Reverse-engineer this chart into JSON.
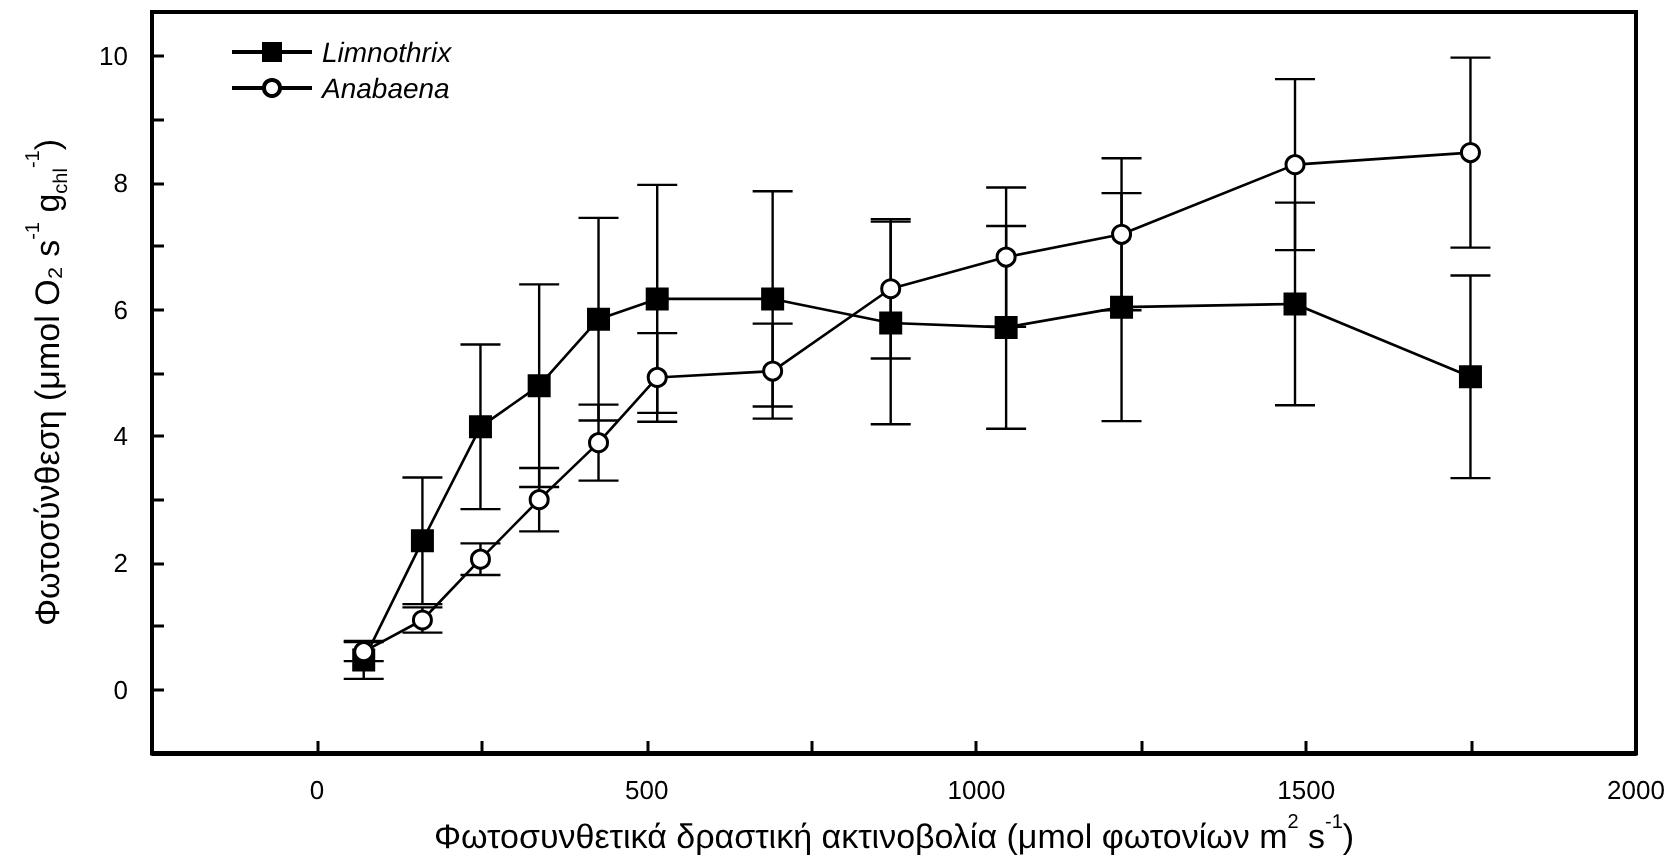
{
  "chart_data": {
    "type": "line",
    "xlabel": "Φωτοσυνθετικά δραστική ακτινοβολία (μmol φωτονίων m$^{2}$ s$^{-1}$)",
    "ylabel": "Φωτοσύνθεση (μmol O₂ s$^{-1}$ g$_{chl}$$^{-1}$)",
    "x": [
      71,
      160,
      248,
      337,
      427,
      516,
      691,
      870,
      1045,
      1220,
      1483,
      1749
    ],
    "series": [
      {
        "name": "Limnothrix",
        "color": "#000000",
        "marker": "square",
        "values": [
          0.47,
          2.35,
          4.15,
          4.8,
          5.85,
          6.17,
          6.17,
          5.79,
          5.72,
          6.04,
          6.09,
          4.94
        ],
        "errors": [
          0.3,
          1.0,
          1.3,
          1.6,
          1.6,
          1.8,
          1.7,
          1.6,
          1.6,
          1.8,
          1.6,
          1.6
        ]
      },
      {
        "name": "Anabaena",
        "color": "#000000",
        "marker": "circle",
        "values": [
          0.6,
          1.1,
          2.06,
          3.0,
          3.9,
          4.93,
          5.03,
          6.33,
          6.83,
          7.19,
          8.29,
          8.48
        ],
        "errors": [
          0.15,
          0.2,
          0.25,
          0.5,
          0.6,
          0.7,
          0.75,
          1.1,
          1.1,
          1.2,
          1.35,
          1.5
        ]
      }
    ],
    "xlim": [
      -250,
      2000
    ],
    "xticks": [
      0,
      {
        "value": 250,
        "label": null
      },
      500,
      {
        "value": 750,
        "label": null
      },
      1000,
      {
        "value": 1250,
        "label": null
      },
      1500,
      {
        "value": 1750,
        "label": null
      },
      2000
    ],
    "ylim": [
      -1,
      10.7
    ],
    "yticks": [
      0,
      {
        "value": 1,
        "label": null
      },
      2,
      {
        "value": 3,
        "label": null
      },
      4,
      {
        "value": 5,
        "label": null
      },
      6,
      {
        "value": 7,
        "label": null
      },
      8,
      {
        "value": 9,
        "label": null
      },
      10
    ],
    "legend": "top left",
    "grid": false,
    "line_style": "solid"
  }
}
